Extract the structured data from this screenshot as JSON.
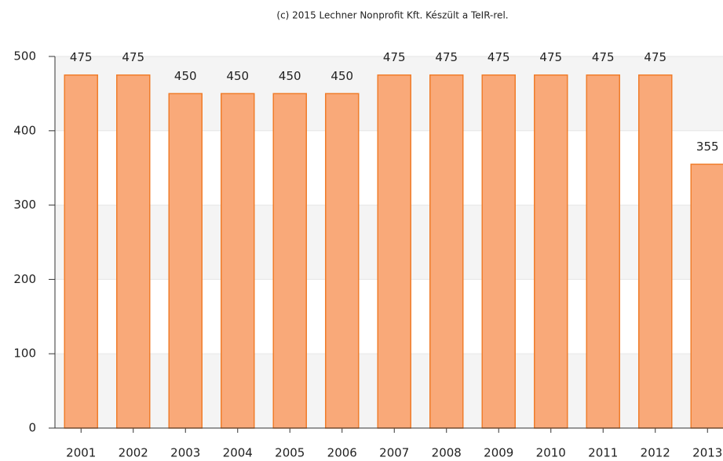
{
  "chart_data": {
    "type": "bar",
    "title": "(c) 2015 Lechner Nonprofit Kft. Készült a TeIR-rel.",
    "categories": [
      "2001",
      "2002",
      "2003",
      "2004",
      "2005",
      "2006",
      "2007",
      "2008",
      "2009",
      "2010",
      "2011",
      "2012",
      "2013"
    ],
    "values": [
      475,
      475,
      450,
      450,
      450,
      450,
      475,
      475,
      475,
      475,
      475,
      475,
      355
    ],
    "color": "#f9a979",
    "edge_color": "#f07d2b",
    "ylim": [
      0,
      500
    ],
    "yticks": [
      0,
      100,
      200,
      300,
      400,
      500
    ],
    "grid": true
  }
}
